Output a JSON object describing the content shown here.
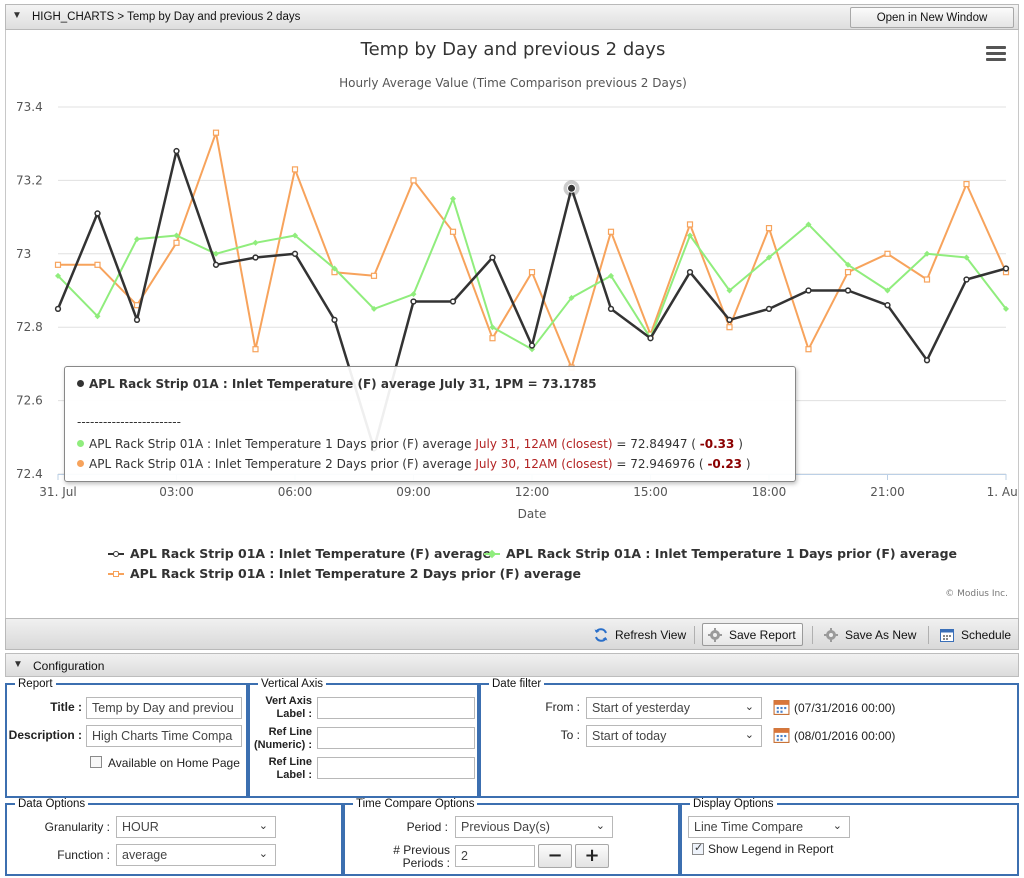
{
  "header": {
    "breadcrumb": "HIGH_CHARTS > Temp by Day and previous 2 days",
    "open_new_window": "Open in New Window"
  },
  "chart_data": {
    "type": "line",
    "title": "Temp by Day and previous 2 days",
    "subtitle": "Hourly Average Value (Time Comparison previous 2 Days)",
    "xlabel": "Date",
    "ylabel": "",
    "x": [
      0,
      1,
      2,
      3,
      4,
      5,
      6,
      7,
      8,
      9,
      10,
      11,
      12,
      13,
      14,
      15,
      16,
      17,
      18,
      19,
      20,
      21,
      22,
      23,
      24
    ],
    "xlim": [
      0,
      24
    ],
    "ylim": [
      72.4,
      73.4
    ],
    "yticks": [
      "72.4",
      "72.6",
      "72.8",
      "73",
      "73.2",
      "73.4"
    ],
    "xticks": [
      {
        "x": 0,
        "label": "31. Jul"
      },
      {
        "x": 3,
        "label": "03:00"
      },
      {
        "x": 6,
        "label": "06:00"
      },
      {
        "x": 9,
        "label": "09:00"
      },
      {
        "x": 12,
        "label": "12:00"
      },
      {
        "x": 15,
        "label": "15:00"
      },
      {
        "x": 18,
        "label": "18:00"
      },
      {
        "x": 21,
        "label": "21:00"
      },
      {
        "x": 24,
        "label": "1. Aug"
      }
    ],
    "grid": true,
    "legend_position": "bottom",
    "series": [
      {
        "name": "APL Rack Strip 01A : Inlet Temperature (F) average",
        "color": "#333333",
        "marker": "circle",
        "values": [
          72.85,
          73.11,
          72.82,
          73.28,
          72.97,
          72.99,
          73.0,
          72.82,
          72.47,
          72.87,
          72.87,
          72.99,
          72.75,
          73.1785,
          72.85,
          72.77,
          72.95,
          72.82,
          72.85,
          72.9,
          72.9,
          72.86,
          72.71,
          72.93,
          72.96
        ]
      },
      {
        "name": "APL Rack Strip 01A : Inlet Temperature 1 Days prior (F) average",
        "color": "#90ed7d",
        "marker": "diamond",
        "values": [
          72.94,
          72.83,
          73.04,
          73.05,
          73.0,
          73.03,
          73.05,
          72.96,
          72.85,
          72.89,
          73.15,
          72.8,
          72.74,
          72.88,
          72.94,
          72.77,
          73.05,
          72.9,
          72.99,
          73.08,
          72.97,
          72.9,
          73.0,
          72.99,
          72.85
        ]
      },
      {
        "name": "APL Rack Strip 01A : Inlet Temperature 2 Days prior (F) average",
        "color": "#f7a35c",
        "marker": "square",
        "values": [
          72.97,
          72.97,
          72.86,
          73.03,
          73.33,
          72.74,
          73.23,
          72.95,
          72.94,
          73.2,
          73.06,
          72.77,
          72.95,
          72.69,
          73.06,
          72.78,
          73.08,
          72.8,
          73.07,
          72.74,
          72.95,
          73.0,
          72.93,
          73.19,
          72.95
        ]
      }
    ],
    "tooltip": {
      "header": "APL Rack Strip 01A : Inlet Temperature (F) average July 31, 1PM = 73.1785",
      "separator": "------------------------",
      "rows": [
        {
          "label": "APL Rack Strip 01A : Inlet Temperature 1 Days prior (F) average",
          "when": "July 31, 12AM (closest)",
          "value": "= 72.84947 (",
          "delta": "-0.33",
          "close": ")"
        },
        {
          "label": "APL Rack Strip 01A : Inlet Temperature 2 Days prior (F) average",
          "when": "July 30, 12AM (closest)",
          "value": "= 72.946976 (",
          "delta": "-0.23",
          "close": ")"
        }
      ]
    },
    "credits": "© Modius Inc."
  },
  "toolbar": {
    "refresh": "Refresh View",
    "save_report": "Save Report",
    "save_as_new": "Save As New",
    "schedule": "Schedule"
  },
  "config": {
    "header": "Configuration",
    "report": {
      "legend": "Report",
      "title_label": "Title :",
      "title_value": "Temp by Day and previou",
      "description_label": "Description :",
      "description_value": "High Charts Time Compa",
      "home_page_label": "Available on Home Page"
    },
    "vertical_axis": {
      "legend": "Vertical Axis",
      "axis_label_1": "Vert Axis",
      "axis_label_2": "Label :",
      "ref_line_num_1": "Ref Line",
      "ref_line_num_2": "(Numeric) :",
      "ref_line_label_1": "Ref Line",
      "ref_line_label_2": "Label :"
    },
    "date_filter": {
      "legend": "Date filter",
      "from_label": "From :",
      "from_value": "Start of yesterday",
      "from_date": "(07/31/2016 00:00)",
      "to_label": "To :",
      "to_value": "Start of today",
      "to_date": "(08/01/2016 00:00)"
    },
    "data_options": {
      "legend": "Data Options",
      "granularity_label": "Granularity :",
      "granularity_value": "HOUR",
      "function_label": "Function :",
      "function_value": "average"
    },
    "time_compare": {
      "legend": "Time Compare Options",
      "period_label": "Period :",
      "period_value": "Previous Day(s)",
      "prev_label_1": "# Previous",
      "prev_label_2": "Periods :",
      "prev_value": "2",
      "minus": "−",
      "plus": "+"
    },
    "display_options": {
      "legend": "Display Options",
      "type_value": "Line Time Compare",
      "show_legend_label": "Show Legend in Report"
    }
  }
}
